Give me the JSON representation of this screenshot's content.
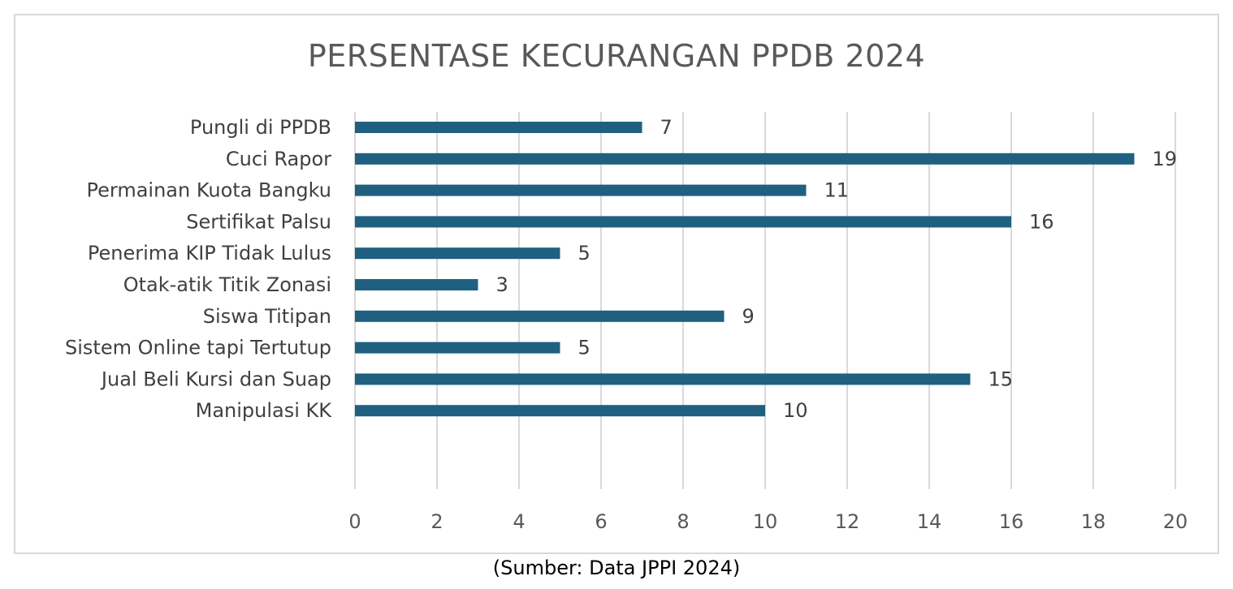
{
  "chart_data": {
    "type": "bar",
    "orientation": "horizontal",
    "title": "PERSENTASE KECURANGAN PPDB 2024",
    "categories": [
      "Pungli di PPDB",
      "Cuci Rapor",
      "Permainan  Kuota  Bangku",
      "Sertifikat Palsu",
      "Penerima KIP Tidak Lulus",
      "Otak-atik Titik Zonasi",
      "Siswa Titipan",
      "Sistem Online tapi Tertutup",
      "Jual Beli Kursi dan Suap",
      "Manipulasi KK"
    ],
    "values": [
      7,
      19,
      11,
      16,
      5,
      3,
      9,
      5,
      15,
      10
    ],
    "xlim": [
      0,
      20
    ],
    "xticks": [
      0,
      2,
      4,
      6,
      8,
      10,
      12,
      14,
      16,
      18,
      20
    ],
    "grid": true,
    "legend": "none",
    "bar_color": "#1f6080",
    "gridline_color": "#d9d9d9"
  },
  "caption": "(Sumber: Data JPPI 2024)"
}
